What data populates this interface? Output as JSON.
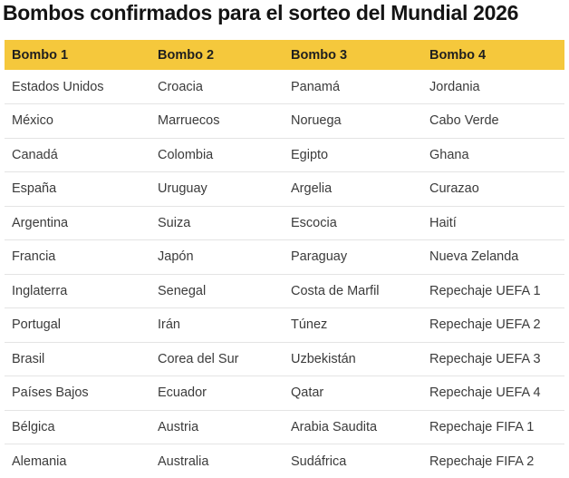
{
  "title": "Bombos confirmados para el sorteo del Mundial 2026",
  "table": {
    "headers": [
      "Bombo 1",
      "Bombo 2",
      "Bombo 3",
      "Bombo 4"
    ],
    "rows": [
      [
        "Estados Unidos",
        "Croacia",
        "Panamá",
        "Jordania"
      ],
      [
        "México",
        "Marruecos",
        "Noruega",
        "Cabo Verde"
      ],
      [
        "Canadá",
        "Colombia",
        "Egipto",
        "Ghana"
      ],
      [
        "España",
        "Uruguay",
        "Argelia",
        "Curazao"
      ],
      [
        "Argentina",
        "Suiza",
        "Escocia",
        "Haití"
      ],
      [
        "Francia",
        "Japón",
        "Paraguay",
        "Nueva Zelanda"
      ],
      [
        "Inglaterra",
        "Senegal",
        "Costa de Marfil",
        "Repechaje UEFA 1"
      ],
      [
        "Portugal",
        "Irán",
        "Túnez",
        "Repechaje UEFA 2"
      ],
      [
        "Brasil",
        "Corea del Sur",
        "Uzbekistán",
        "Repechaje UEFA 3"
      ],
      [
        "Países Bajos",
        "Ecuador",
        "Qatar",
        "Repechaje UEFA 4"
      ],
      [
        "Bélgica",
        "Austria",
        "Arabia Saudita",
        "Repechaje FIFA 1"
      ],
      [
        "Alemania",
        "Australia",
        "Sudáfrica",
        "Repechaje FIFA 2"
      ]
    ]
  },
  "colors": {
    "header_background": "#f5c83c",
    "header_text": "#1f1f1f",
    "body_text": "#3b3b3b",
    "row_separator": "#e4e4e4",
    "title_text": "#141414",
    "page_background": "#ffffff"
  },
  "chart_data": {
    "type": "table",
    "title": "Bombos confirmados para el sorteo del Mundial 2026",
    "columns": [
      "Bombo 1",
      "Bombo 2",
      "Bombo 3",
      "Bombo 4"
    ],
    "rows": [
      [
        "Estados Unidos",
        "Croacia",
        "Panamá",
        "Jordania"
      ],
      [
        "México",
        "Marruecos",
        "Noruega",
        "Cabo Verde"
      ],
      [
        "Canadá",
        "Colombia",
        "Egipto",
        "Ghana"
      ],
      [
        "España",
        "Uruguay",
        "Argelia",
        "Curazao"
      ],
      [
        "Argentina",
        "Suiza",
        "Escocia",
        "Haití"
      ],
      [
        "Francia",
        "Japón",
        "Paraguay",
        "Nueva Zelanda"
      ],
      [
        "Inglaterra",
        "Senegal",
        "Costa de Marfil",
        "Repechaje UEFA 1"
      ],
      [
        "Portugal",
        "Irán",
        "Túnez",
        "Repechaje UEFA 2"
      ],
      [
        "Brasil",
        "Corea del Sur",
        "Uzbekistán",
        "Repechaje UEFA 3"
      ],
      [
        "Países Bajos",
        "Ecuador",
        "Qatar",
        "Repechaje UEFA 4"
      ],
      [
        "Bélgica",
        "Austria",
        "Arabia Saudita",
        "Repechaje FIFA 1"
      ],
      [
        "Alemania",
        "Australia",
        "Sudáfrica",
        "Repechaje FIFA 2"
      ]
    ],
    "layout_hints": {
      "header_style": "yellow-band",
      "row_separators": true,
      "grid": "horizontal-only",
      "last_row_clipped_at_bottom": true
    }
  }
}
